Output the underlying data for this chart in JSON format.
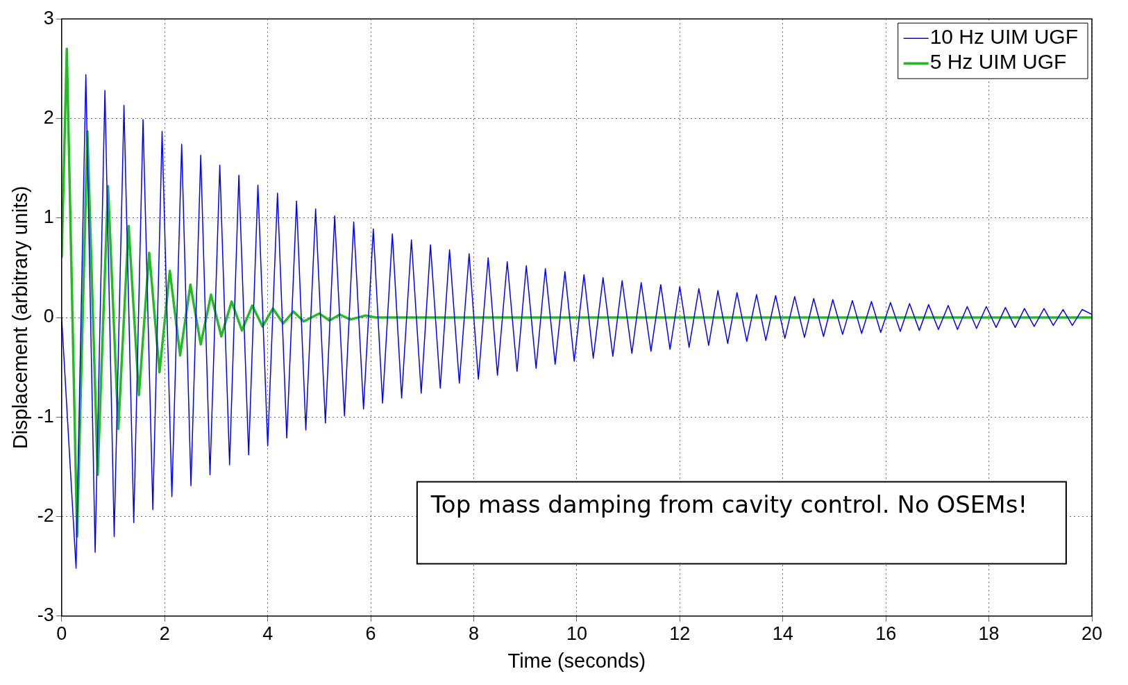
{
  "chart_data": {
    "type": "line",
    "xlabel": "Time (seconds)",
    "ylabel": "Displacement (arbitrary units)",
    "xlim": [
      0,
      20
    ],
    "ylim": [
      -3,
      3
    ],
    "xticks": [
      0,
      2,
      4,
      6,
      8,
      10,
      12,
      14,
      16,
      18,
      20
    ],
    "yticks": [
      -3,
      -2,
      -1,
      0,
      1,
      2,
      3
    ],
    "grid": true,
    "legend": "top right",
    "marker": "none",
    "line_style": "solid",
    "annotations": [
      "Top mass damping from cavity control. No OSEMs!"
    ],
    "series": [
      {
        "name": "10 Hz UIM UGF",
        "color": "#0000ff",
        "x": [
          0,
          0.28,
          0.47,
          0.65,
          0.84,
          1.02,
          1.21,
          1.4,
          1.58,
          1.77,
          1.95,
          2.14,
          2.33,
          2.51,
          2.7,
          2.88,
          3.07,
          3.26,
          3.44,
          3.63,
          3.81,
          4.0,
          4.19,
          4.37,
          4.56,
          4.74,
          4.93,
          5.12,
          5.3,
          5.49,
          5.67,
          5.86,
          6.05,
          6.23,
          6.42,
          6.6,
          6.79,
          6.98,
          7.16,
          7.35,
          7.53,
          7.72,
          7.91,
          8.09,
          8.28,
          8.46,
          8.65,
          8.84,
          9.02,
          9.21,
          9.39,
          9.58,
          9.77,
          9.95,
          10.14,
          10.32,
          10.51,
          10.7,
          10.88,
          11.07,
          11.25,
          11.44,
          11.63,
          11.81,
          12.0,
          12.18,
          12.37,
          12.56,
          12.74,
          12.93,
          13.11,
          13.3,
          13.49,
          13.67,
          13.86,
          14.04,
          14.23,
          14.42,
          14.6,
          14.79,
          14.97,
          15.16,
          15.35,
          15.53,
          15.72,
          15.9,
          16.09,
          16.28,
          16.46,
          16.65,
          16.83,
          17.02,
          17.21,
          17.39,
          17.58,
          17.76,
          17.95,
          18.14,
          18.32,
          18.51,
          18.69,
          18.88,
          19.07,
          19.25,
          19.44,
          19.62,
          19.81,
          20
        ],
        "values": [
          0,
          -2.52,
          2.44,
          -2.36,
          2.28,
          -2.2,
          2.13,
          -2.06,
          1.99,
          -1.93,
          1.87,
          -1.8,
          1.74,
          -1.69,
          1.63,
          -1.58,
          1.53,
          -1.48,
          1.43,
          -1.38,
          1.33,
          -1.29,
          1.25,
          -1.21,
          1.17,
          -1.13,
          1.09,
          -1.06,
          1.02,
          -0.99,
          0.96,
          -0.92,
          0.89,
          -0.86,
          0.84,
          -0.81,
          0.78,
          -0.76,
          0.73,
          -0.71,
          0.68,
          -0.66,
          0.64,
          -0.62,
          0.6,
          -0.58,
          0.56,
          -0.54,
          0.52,
          -0.51,
          0.49,
          -0.47,
          0.46,
          -0.44,
          0.43,
          -0.41,
          0.4,
          -0.39,
          0.37,
          -0.36,
          0.35,
          -0.34,
          0.33,
          -0.32,
          0.31,
          -0.3,
          0.29,
          -0.28,
          0.27,
          -0.26,
          0.25,
          -0.24,
          0.23,
          -0.23,
          0.22,
          -0.21,
          0.21,
          -0.2,
          0.19,
          -0.19,
          0.18,
          -0.17,
          0.17,
          -0.16,
          0.16,
          -0.15,
          0.15,
          -0.14,
          0.14,
          -0.13,
          0.13,
          -0.12,
          0.12,
          -0.12,
          0.11,
          -0.11,
          0.11,
          -0.1,
          0.1,
          -0.1,
          0.09,
          -0.09,
          0.09,
          -0.08,
          0.08,
          -0.08,
          0.08,
          0.03
        ]
      },
      {
        "name": "5 Hz UIM UGF",
        "color": "#22bb22",
        "x": [
          0,
          0.1,
          0.3,
          0.5,
          0.7,
          0.9,
          1.1,
          1.3,
          1.5,
          1.7,
          1.9,
          2.1,
          2.3,
          2.5,
          2.7,
          2.9,
          3.1,
          3.3,
          3.5,
          3.7,
          3.9,
          4.1,
          4.3,
          4.5,
          4.7,
          5.0,
          5.2,
          5.4,
          5.6,
          5.9,
          6.1,
          7,
          20
        ],
        "values": [
          0.6,
          2.7,
          -2.2,
          1.87,
          -1.58,
          1.32,
          -1.12,
          0.92,
          -0.78,
          0.65,
          -0.55,
          0.47,
          -0.38,
          0.33,
          -0.27,
          0.23,
          -0.19,
          0.16,
          -0.13,
          0.12,
          -0.09,
          0.09,
          -0.06,
          0.06,
          -0.04,
          0.04,
          -0.03,
          0.03,
          -0.02,
          0.02,
          0,
          0,
          0
        ]
      }
    ]
  }
}
